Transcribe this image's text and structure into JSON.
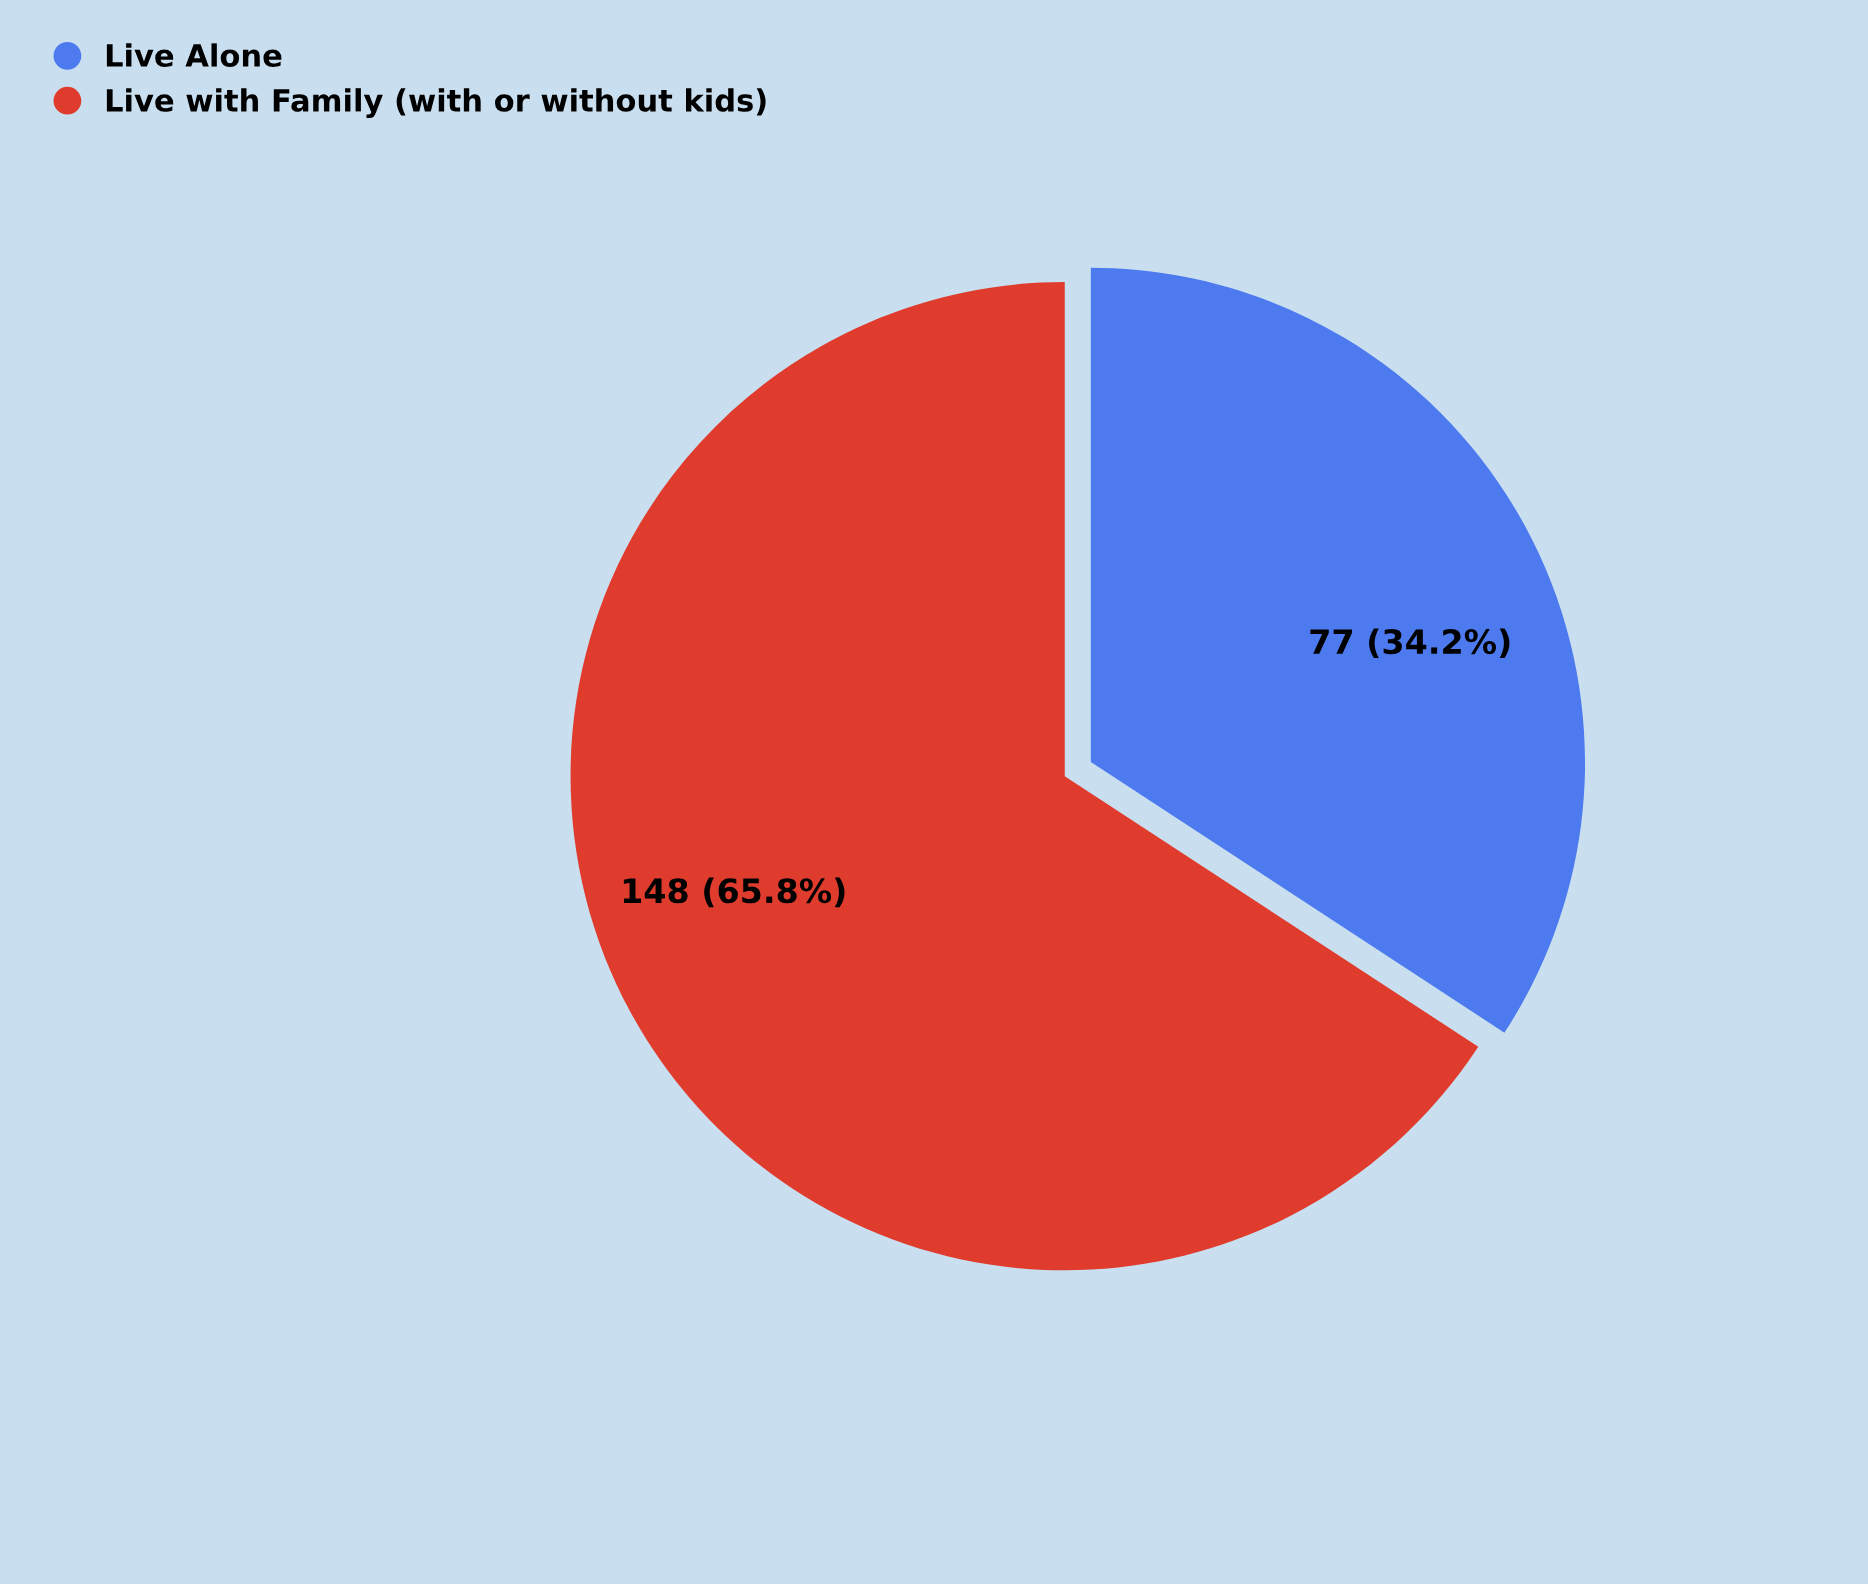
{
  "chart_data": {
    "type": "pie",
    "categories": [
      "Live Alone",
      "Live with Family (with or without kids)"
    ],
    "values": [
      77,
      148
    ],
    "value_labels": [
      "77 (34.2%)",
      "148 (65.8%)"
    ],
    "colors": [
      "#4d7bef",
      "#e03c2e"
    ],
    "legend": "top left"
  }
}
